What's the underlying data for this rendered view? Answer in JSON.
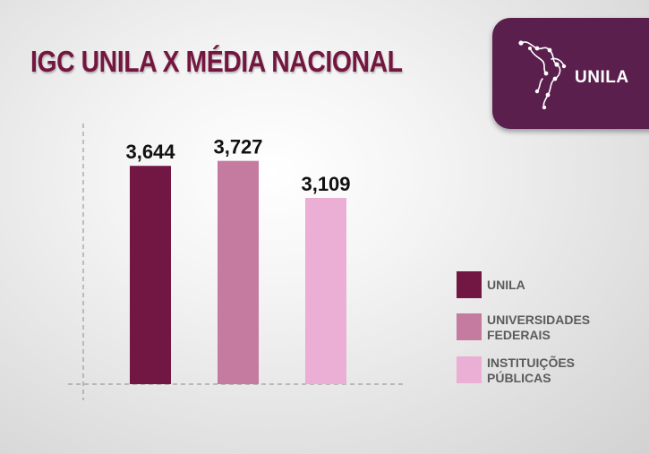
{
  "title": "IGC UNILA X MÉDIA NACIONAL",
  "logo": {
    "text": "UNILA",
    "box_color": "#5a1f4d"
  },
  "colors": {
    "axis": "#8a8a8a",
    "label": "#111111",
    "title": "#74163f"
  },
  "chart_data": {
    "type": "bar",
    "title": "IGC UNILA X MÉDIA NACIONAL",
    "categories": [
      "UNILA",
      "UNIVERSIDADES FEDERAIS",
      "INSTITUIÇÕES PÚBLICAS"
    ],
    "values": [
      3.644,
      3.727,
      3.109
    ],
    "value_labels": [
      "3,644",
      "3,727",
      "3,109"
    ],
    "colors": [
      "#721744",
      "#c57aa0",
      "#ebaed4"
    ],
    "ylim": [
      0,
      4.35
    ],
    "xlabel": "",
    "ylabel": "",
    "grid": false,
    "legend_placement": "right",
    "legend": [
      {
        "label_lines": [
          "UNILA"
        ],
        "color": "#721744"
      },
      {
        "label_lines": [
          "UNIVERSIDADES",
          "FEDERAIS"
        ],
        "color": "#c57aa0"
      },
      {
        "label_lines": [
          "INSTITUIÇÕES",
          "PÚBLICAS"
        ],
        "color": "#ebaed4"
      }
    ]
  }
}
